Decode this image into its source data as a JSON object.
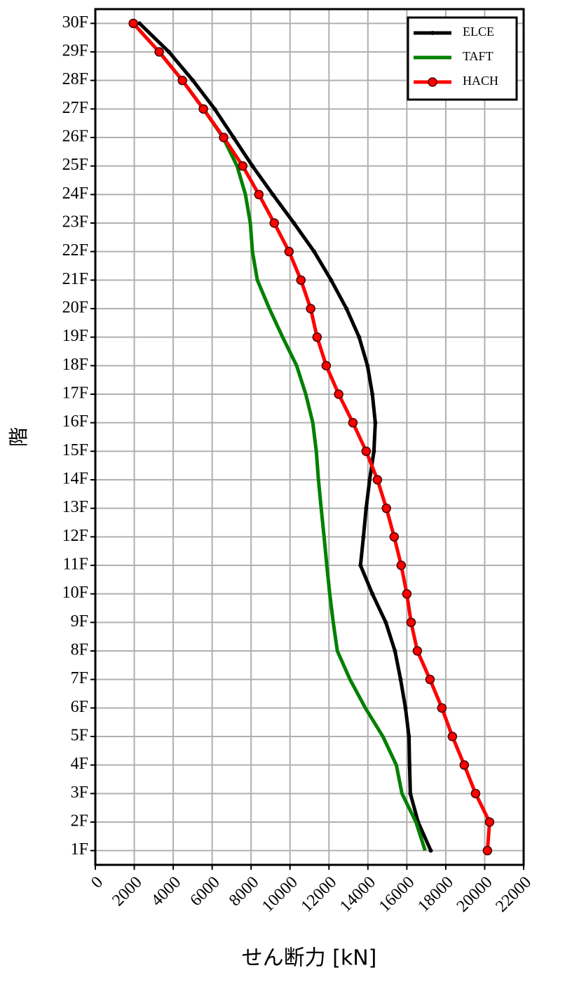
{
  "chart_data": {
    "type": "line",
    "xlabel": "せん断力 [kN]",
    "ylabel": "階",
    "categories": [
      "1F",
      "2F",
      "3F",
      "4F",
      "5F",
      "6F",
      "7F",
      "8F",
      "9F",
      "10F",
      "11F",
      "12F",
      "13F",
      "14F",
      "15F",
      "16F",
      "17F",
      "18F",
      "19F",
      "20F",
      "21F",
      "22F",
      "23F",
      "24F",
      "25F",
      "26F",
      "27F",
      "28F",
      "29F",
      "30F"
    ],
    "xlim": [
      0,
      22000
    ],
    "xticks": [
      0,
      2000,
      4000,
      6000,
      8000,
      10000,
      12000,
      14000,
      16000,
      18000,
      20000,
      22000
    ],
    "grid": true,
    "legend": "upper right",
    "series": [
      {
        "name": "ELCE",
        "color": "#000000",
        "marker": "small",
        "values": [
          17230,
          16580,
          16180,
          16140,
          16110,
          15930,
          15680,
          15390,
          14920,
          14230,
          13620,
          13770,
          13910,
          14090,
          14310,
          14380,
          14230,
          13980,
          13550,
          12900,
          12110,
          11240,
          10200,
          9120,
          8070,
          7100,
          6130,
          5010,
          3780,
          2270
        ]
      },
      {
        "name": "TAFT",
        "color": "#008000",
        "marker": "none",
        "values": [
          16940,
          16470,
          15750,
          15460,
          14770,
          13870,
          13080,
          12430,
          12220,
          12040,
          11890,
          11750,
          11600,
          11460,
          11350,
          11170,
          10810,
          10340,
          9620,
          8940,
          8320,
          8070,
          7960,
          7710,
          7280,
          6560,
          5550,
          4470,
          3280,
          1950
        ]
      },
      {
        "name": "HACH",
        "color": "#ff0000",
        "marker": "large",
        "values": [
          20140,
          20250,
          19530,
          18950,
          18340,
          17800,
          17190,
          16540,
          16220,
          16000,
          15710,
          15350,
          14950,
          14490,
          13910,
          13230,
          12500,
          11860,
          11390,
          11060,
          10560,
          9950,
          9190,
          8400,
          7570,
          6590,
          5550,
          4470,
          3280,
          1950
        ]
      }
    ]
  }
}
